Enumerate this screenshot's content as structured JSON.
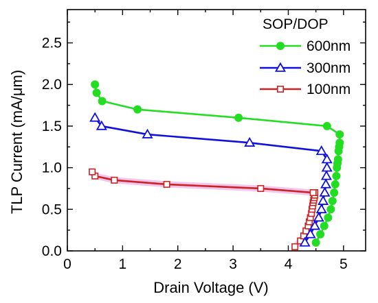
{
  "chart_data": {
    "type": "line",
    "xlabel": "Drain Voltage (V)",
    "ylabel": "TLP Current (mA/μm)",
    "xlim": [
      0,
      5.4
    ],
    "ylim": [
      0,
      2.9
    ],
    "x_ticks": [
      "0",
      "1",
      "2",
      "3",
      "4",
      "5"
    ],
    "y_ticks": [
      "0.0",
      "0.5",
      "1.0",
      "1.5",
      "2.0",
      "2.5"
    ],
    "legend": {
      "title": "SOP/DOP",
      "position": "top-right"
    },
    "series": [
      {
        "name": "600nm",
        "color": "#22dd22",
        "marker": "filled-circle",
        "x": [
          4.5,
          4.58,
          4.65,
          4.72,
          4.77,
          4.8,
          4.83,
          4.85,
          4.87,
          4.88,
          4.89,
          4.9,
          4.91,
          4.92,
          4.93,
          4.93,
          4.7,
          3.1,
          1.27,
          0.63,
          0.53,
          0.5
        ],
        "y": [
          0.1,
          0.2,
          0.3,
          0.4,
          0.5,
          0.6,
          0.7,
          0.8,
          0.9,
          1.0,
          1.05,
          1.1,
          1.2,
          1.25,
          1.3,
          1.4,
          1.5,
          1.6,
          1.7,
          1.8,
          1.9,
          2.0
        ]
      },
      {
        "name": "300nm",
        "color": "#1010dd",
        "marker": "open-triangle",
        "x": [
          4.3,
          4.4,
          4.48,
          4.55,
          4.6,
          4.63,
          4.66,
          4.68,
          4.69,
          4.7,
          4.7,
          4.6,
          3.3,
          1.45,
          0.62,
          0.5
        ],
        "y": [
          0.1,
          0.2,
          0.3,
          0.4,
          0.5,
          0.6,
          0.7,
          0.8,
          0.9,
          1.0,
          1.1,
          1.2,
          1.3,
          1.4,
          1.5,
          1.6
        ]
      },
      {
        "name": "100nm",
        "color": "#cc2222",
        "marker": "open-square",
        "x": [
          4.12,
          4.22,
          4.28,
          4.32,
          4.36,
          4.38,
          4.4,
          4.42,
          4.43,
          4.44,
          4.45,
          4.46,
          4.47,
          4.48,
          4.48,
          4.45,
          3.5,
          1.8,
          0.85,
          0.5,
          0.45
        ],
        "y": [
          0.05,
          0.12,
          0.18,
          0.24,
          0.3,
          0.35,
          0.4,
          0.45,
          0.5,
          0.54,
          0.58,
          0.61,
          0.64,
          0.67,
          0.7,
          0.7,
          0.75,
          0.8,
          0.85,
          0.9,
          0.95
        ]
      }
    ]
  }
}
